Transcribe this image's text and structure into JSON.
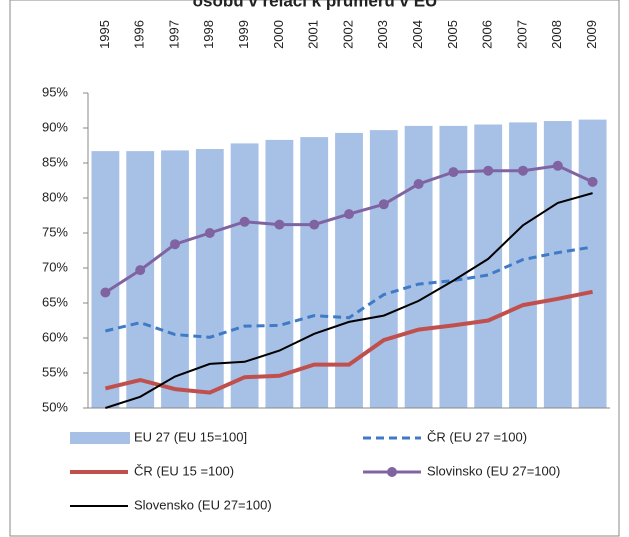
{
  "chart_data": {
    "type": "bar-line",
    "title": "osobu v relaci k průměru v EU",
    "categories": [
      "1995",
      "1996",
      "1997",
      "1998",
      "1999",
      "2000",
      "2001",
      "2002",
      "2003",
      "2004",
      "2005",
      "2006",
      "2007",
      "2008",
      "2009"
    ],
    "series": [
      {
        "name": "EU 27 (EU 15=100]",
        "type": "bar",
        "color": "#a7c1e6",
        "values": [
          86.7,
          86.7,
          86.8,
          87.0,
          87.8,
          88.3,
          88.7,
          89.3,
          89.7,
          90.3,
          90.3,
          90.5,
          90.8,
          91.0,
          91.2
        ]
      },
      {
        "name": "ČR (EU 27 =100)",
        "type": "line",
        "style": "dashed",
        "color": "#3f7ac6",
        "values": [
          61,
          62.2,
          60.5,
          60.1,
          61.7,
          61.8,
          63.2,
          62.9,
          66.2,
          67.7,
          68.2,
          69,
          71.2,
          72.2,
          73
        ]
      },
      {
        "name": "ČR (EU 15 =100)",
        "type": "line",
        "style": "thick",
        "color": "#c0504d",
        "values": [
          52.8,
          54,
          52.7,
          52.2,
          54.4,
          54.6,
          56.2,
          56.2,
          59.7,
          61.2,
          61.8,
          62.5,
          64.7,
          65.6,
          66.6
        ]
      },
      {
        "name": "Slovinsko (EU 27=100)",
        "type": "line",
        "style": "marker",
        "color": "#8064a2",
        "values": [
          66.5,
          69.7,
          73.4,
          75,
          76.6,
          76.2,
          76.2,
          77.7,
          79.1,
          82,
          83.7,
          83.9,
          83.9,
          84.6,
          82.3
        ]
      },
      {
        "name": "Slovensko (EU 27=100)",
        "type": "line",
        "style": "thin",
        "color": "#000000",
        "values": [
          50,
          51.6,
          54.5,
          56.3,
          56.6,
          58.2,
          60.6,
          62.3,
          63.2,
          65.3,
          68.2,
          71.3,
          76.1,
          79.3,
          80.7
        ]
      }
    ],
    "ylim": [
      50,
      95
    ],
    "yticks": [
      {
        "value": 50,
        "label": "50%"
      },
      {
        "value": 55,
        "label": "55%"
      },
      {
        "value": 60,
        "label": "60%"
      },
      {
        "value": 65,
        "label": "65%"
      },
      {
        "value": 70,
        "label": "70%"
      },
      {
        "value": 75,
        "label": "75%"
      },
      {
        "value": 80,
        "label": "80%"
      },
      {
        "value": 85,
        "label": "85%"
      },
      {
        "value": 90,
        "label": "90%"
      },
      {
        "value": 95,
        "label": "95%"
      }
    ]
  }
}
